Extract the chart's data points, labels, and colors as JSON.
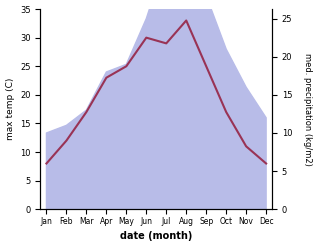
{
  "months": [
    "Jan",
    "Feb",
    "Mar",
    "Apr",
    "May",
    "Jun",
    "Jul",
    "Aug",
    "Sep",
    "Oct",
    "Nov",
    "Dec"
  ],
  "temp": [
    8,
    12,
    17,
    23,
    25,
    30,
    29,
    33,
    25,
    17,
    11,
    8
  ],
  "precip": [
    10,
    11,
    13,
    18,
    19,
    25,
    33,
    27,
    28,
    21,
    16,
    12
  ],
  "temp_color": "#993355",
  "precip_fill_color": "#b8bce8",
  "temp_ylim": [
    0,
    35
  ],
  "precip_ylim": [
    0,
    26.25
  ],
  "ylabel_left": "max temp (C)",
  "ylabel_right": "med. precipitation (kg/m2)",
  "xlabel": "date (month)",
  "bg_color": "#ffffff"
}
